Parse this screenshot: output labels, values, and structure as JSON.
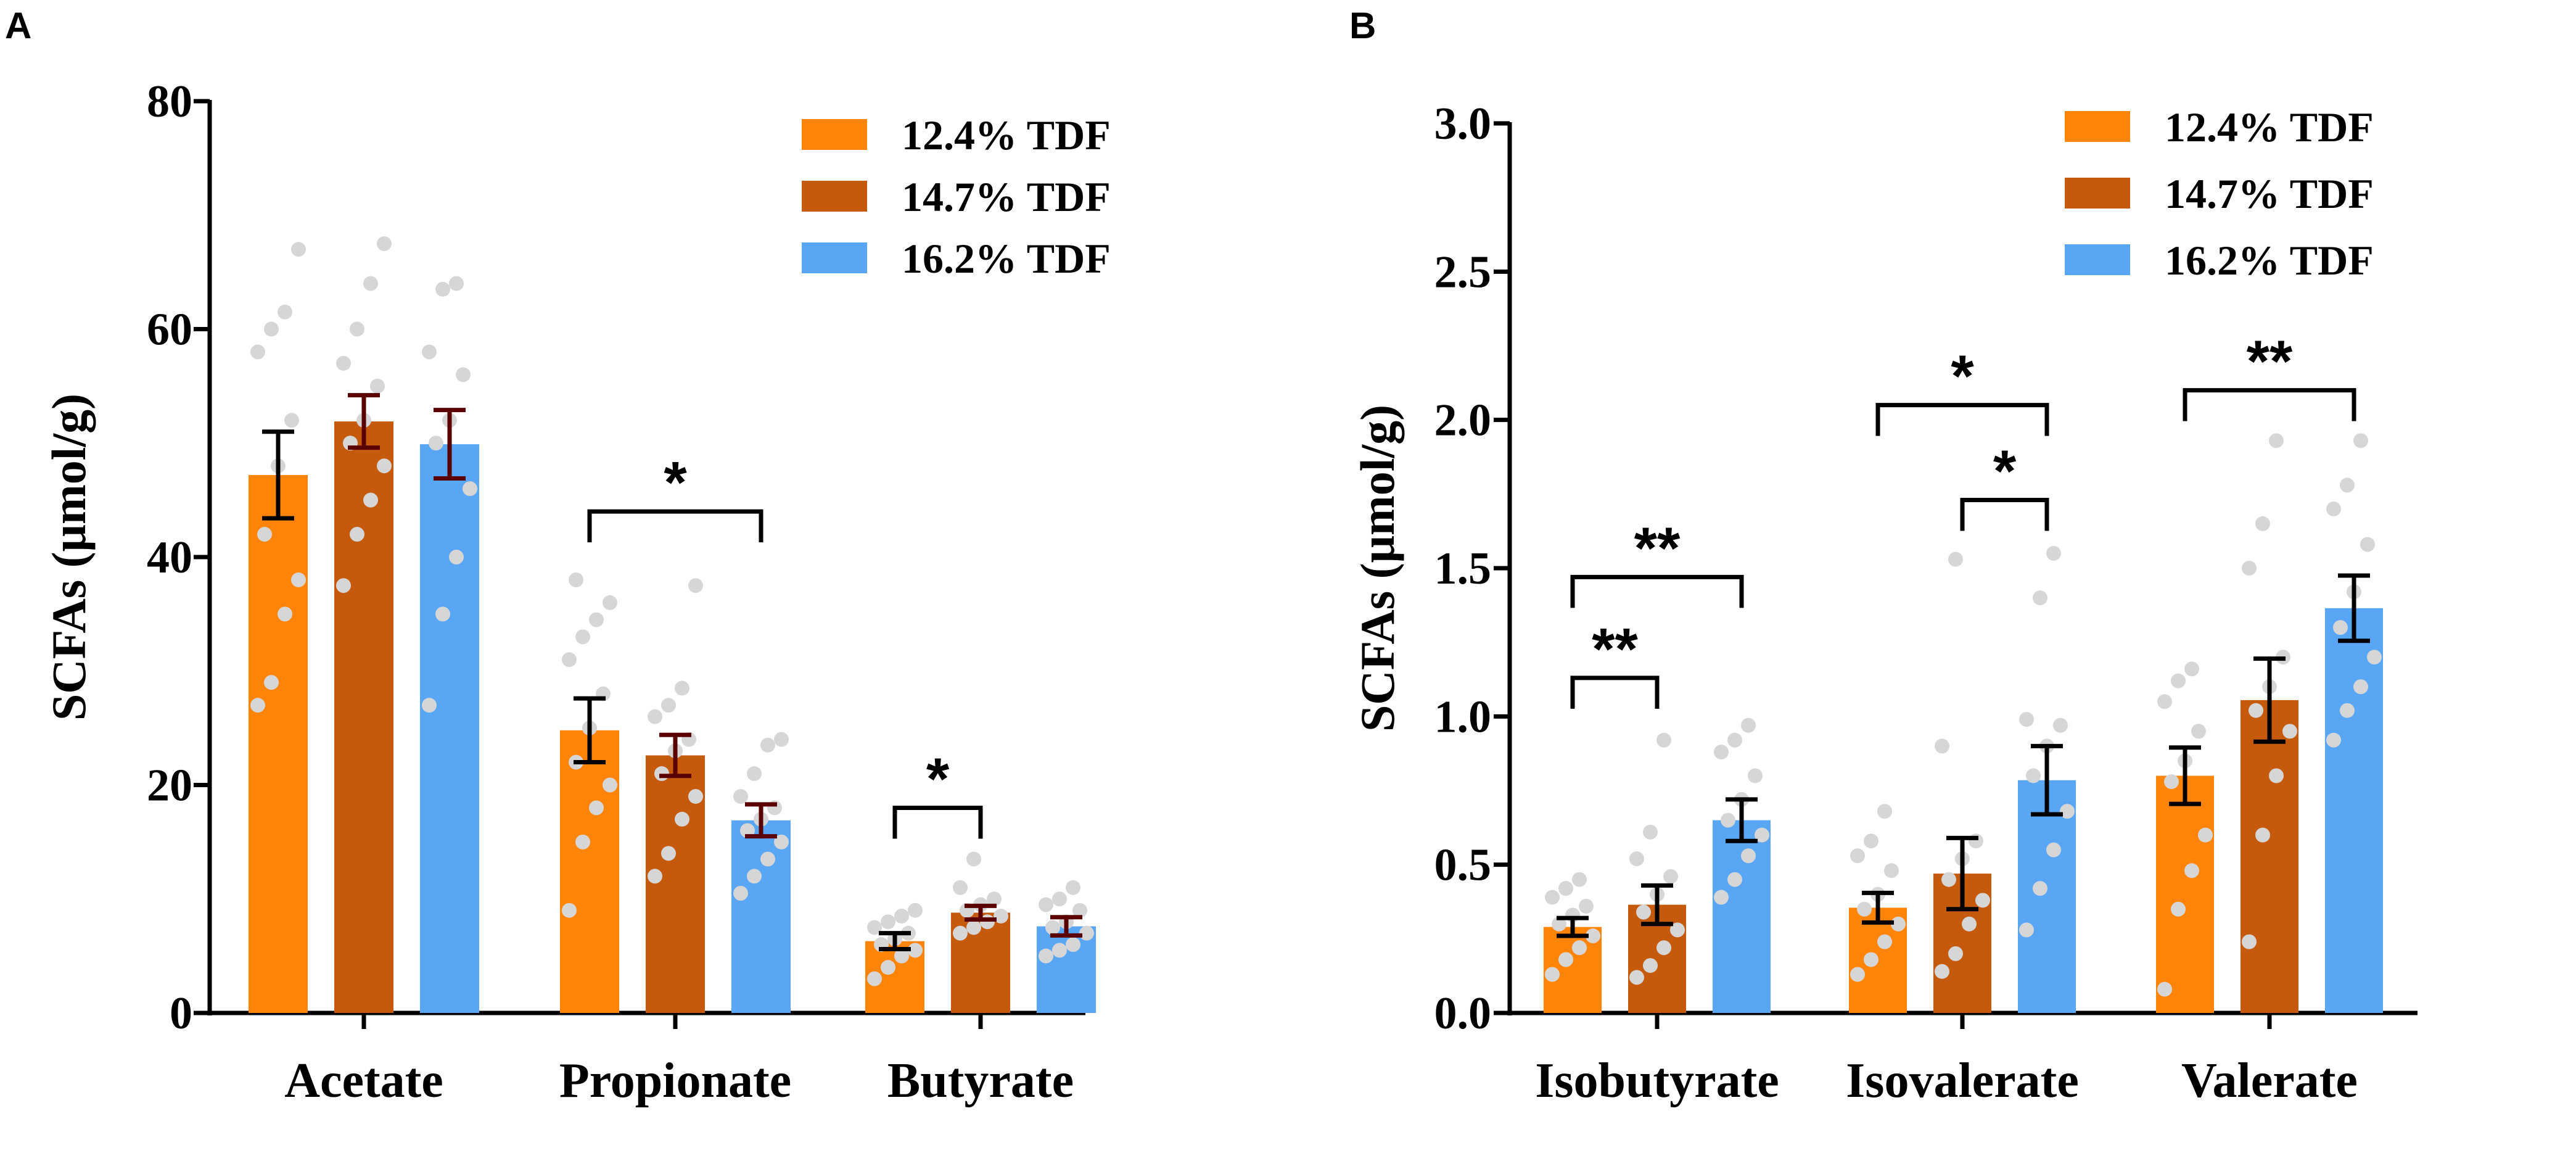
{
  "chart_data": [
    {
      "panel": "A",
      "type": "bar",
      "ylabel": "SCFAs (μmol/g)",
      "ylim": [
        0,
        80
      ],
      "yticks": [
        0,
        20,
        40,
        60,
        80
      ],
      "yticks_text": [
        "0",
        "20",
        "40",
        "60",
        "80"
      ],
      "categories": [
        "Acetate",
        "Propionate",
        "Butyrate"
      ],
      "legend_position": "top-right",
      "series": [
        {
          "name": "12.4% TDF",
          "color": "#ff8408",
          "error_color": "#000000",
          "values": [
            47.2,
            24.8,
            6.3
          ],
          "errors": [
            3.8,
            2.8,
            0.7
          ],
          "points": [
            [
              27,
              29,
              35,
              38,
              42,
              48,
              52,
              58,
              60,
              61.5,
              67
            ],
            [
              9,
              15,
              18,
              20,
              22,
              25,
              28,
              31,
              33,
              34.5,
              36,
              38
            ],
            [
              3,
              4,
              5,
              5.5,
              6,
              6.5,
              7,
              7.5,
              8,
              8.5,
              9
            ]
          ]
        },
        {
          "name": "14.7% TDF",
          "color": "#c55a0c",
          "error_color": "#5a0000",
          "values": [
            51.9,
            22.6,
            8.8
          ],
          "errors": [
            2.3,
            1.8,
            0.6
          ],
          "points": [
            [
              37.5,
              42,
              45,
              48,
              50,
              52,
              55,
              57,
              60,
              64,
              67.5
            ],
            [
              12,
              14,
              17,
              19,
              21,
              23,
              24,
              26,
              27,
              28.5,
              37.5
            ],
            [
              7,
              7.5,
              8,
              8.5,
              9,
              9.5,
              10,
              11,
              13.5
            ]
          ]
        },
        {
          "name": "16.2% TDF",
          "color": "#58a6f4",
          "error_color": "#5a0000",
          "values": [
            49.9,
            16.9,
            7.6
          ],
          "errors": [
            3.0,
            1.4,
            0.8
          ],
          "points": [
            [
              27,
              35,
              40,
              46,
              50,
              52,
              56,
              58,
              63.5,
              64
            ],
            [
              10.5,
              12,
              13.5,
              15,
              16,
              17,
              18,
              19,
              21,
              23.5,
              24
            ],
            [
              5,
              5.5,
              6,
              7,
              7.5,
              8,
              9,
              9.5,
              10,
              11
            ]
          ]
        }
      ],
      "significance": [
        {
          "label": "*",
          "category": 1,
          "from_series": 0,
          "to_series": 2,
          "y": 44
        },
        {
          "label": "*",
          "category": 2,
          "from_series": 0,
          "to_series": 1,
          "y": 18
        }
      ]
    },
    {
      "panel": "B",
      "type": "bar",
      "ylabel": "SCFAs (μmol/g)",
      "ylim": [
        0,
        3.0
      ],
      "yticks": [
        0,
        0.5,
        1.0,
        1.5,
        2.0,
        2.5,
        3.0
      ],
      "yticks_text": [
        "0.0",
        "0.5",
        "1.0",
        "1.5",
        "2.0",
        "2.5",
        "3.0"
      ],
      "categories": [
        "Isobutyrate",
        "Isovalerate",
        "Valerate"
      ],
      "legend_position": "top-right",
      "series": [
        {
          "name": "12.4% TDF",
          "color": "#ff8408",
          "error_color": "#000000",
          "values": [
            0.29,
            0.355,
            0.8
          ],
          "errors": [
            0.03,
            0.05,
            0.095
          ],
          "points": [
            [
              0.13,
              0.18,
              0.22,
              0.26,
              0.3,
              0.33,
              0.36,
              0.39,
              0.42,
              0.45
            ],
            [
              0.13,
              0.18,
              0.24,
              0.3,
              0.35,
              0.4,
              0.48,
              0.53,
              0.58,
              0.68
            ],
            [
              0.08,
              0.35,
              0.48,
              0.6,
              0.78,
              0.85,
              0.95,
              1.05,
              1.12,
              1.16
            ]
          ]
        },
        {
          "name": "14.7% TDF",
          "color": "#c55a0c",
          "error_color": "#000000",
          "values": [
            0.365,
            0.47,
            1.055
          ],
          "errors": [
            0.065,
            0.12,
            0.14
          ],
          "points": [
            [
              0.12,
              0.16,
              0.22,
              0.28,
              0.34,
              0.4,
              0.46,
              0.52,
              0.61,
              0.92
            ],
            [
              0.14,
              0.2,
              0.3,
              0.38,
              0.45,
              0.52,
              0.58,
              0.9,
              1.53
            ],
            [
              0.24,
              0.6,
              0.8,
              0.95,
              1.02,
              1.1,
              1.2,
              1.5,
              1.65,
              1.93
            ]
          ]
        },
        {
          "name": "16.2% TDF",
          "color": "#58a6f4",
          "error_color": "#000000",
          "values": [
            0.65,
            0.785,
            1.365
          ],
          "errors": [
            0.07,
            0.115,
            0.11
          ],
          "points": [
            [
              0.39,
              0.45,
              0.53,
              0.6,
              0.65,
              0.72,
              0.8,
              0.88,
              0.92,
              0.97
            ],
            [
              0.28,
              0.42,
              0.55,
              0.68,
              0.8,
              0.9,
              0.97,
              0.99,
              1.4,
              1.55
            ],
            [
              0.92,
              1.02,
              1.1,
              1.2,
              1.3,
              1.42,
              1.58,
              1.7,
              1.78,
              1.93
            ]
          ]
        }
      ],
      "significance": [
        {
          "label": "**",
          "category": 0,
          "from_series": 0,
          "to_series": 1,
          "y": 1.13
        },
        {
          "label": "**",
          "category": 0,
          "from_series": 0,
          "to_series": 2,
          "y": 1.47
        },
        {
          "label": "*",
          "category": 1,
          "from_series": 1,
          "to_series": 2,
          "y": 1.73
        },
        {
          "label": "*",
          "category": 1,
          "from_series": 0,
          "to_series": 2,
          "y": 2.05
        },
        {
          "label": "**",
          "category": 2,
          "from_series": 0,
          "to_series": 2,
          "y": 2.1
        }
      ]
    }
  ]
}
